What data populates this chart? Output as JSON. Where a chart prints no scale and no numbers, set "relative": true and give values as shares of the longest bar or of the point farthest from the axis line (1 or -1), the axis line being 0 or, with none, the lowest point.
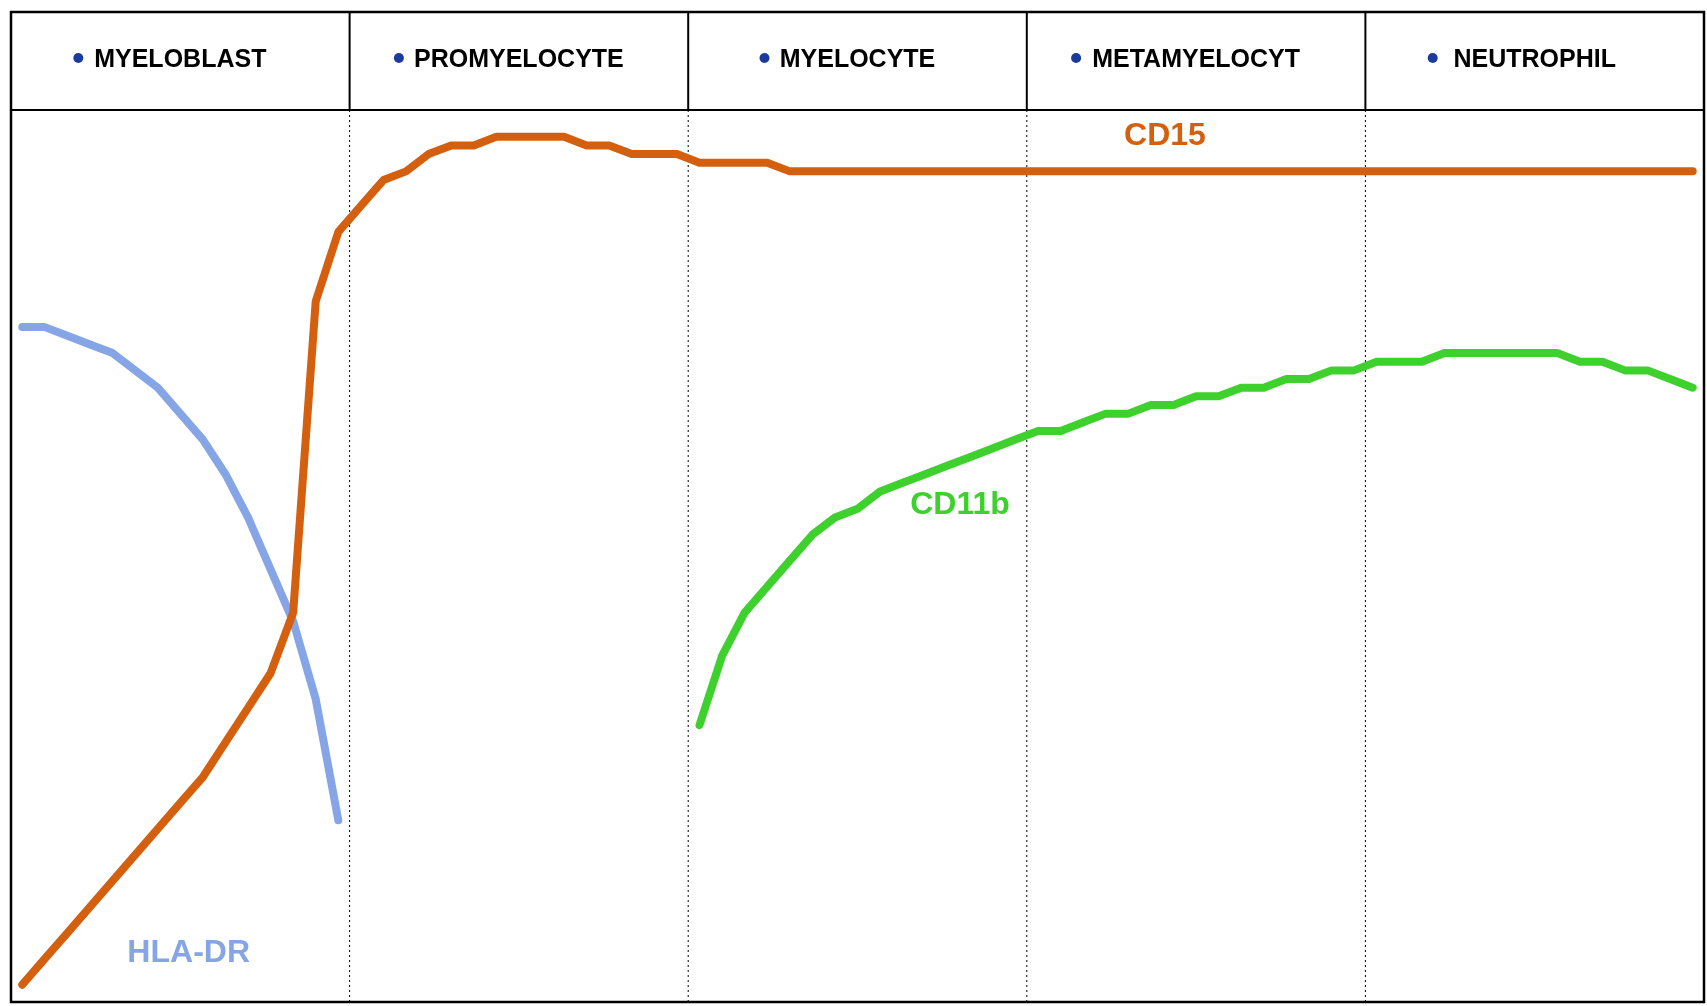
{
  "chart_data": {
    "type": "line",
    "relative": true,
    "categories": [
      null,
      null,
      null,
      null,
      null,
      null,
      null,
      "MYELOBLAST",
      null,
      null,
      null,
      null,
      null,
      null,
      null,
      null,
      null,
      null,
      null,
      null,
      null,
      null,
      "PROMYELOCYTE",
      null,
      null,
      null,
      null,
      null,
      null,
      null,
      null,
      null,
      null,
      null,
      null,
      null,
      null,
      "MYELOCYTE",
      null,
      null,
      null,
      null,
      null,
      null,
      null,
      null,
      null,
      null,
      null,
      null,
      null,
      null,
      "METAMYELOCYT",
      null,
      null,
      null,
      null,
      null,
      null,
      null,
      null,
      null,
      null,
      null,
      null,
      null,
      null,
      "NEUTROPHIL",
      null,
      null,
      null,
      null,
      null,
      null,
      null
    ],
    "series": [
      {
        "name": "HLA-DR",
        "color": "#86a5e6",
        "values": [
          0.78,
          0.78,
          0.77,
          0.76,
          0.75,
          0.73,
          0.71,
          0.68,
          0.65,
          0.61,
          0.56,
          0.5,
          0.44,
          0.35,
          0.21,
          null,
          null,
          null,
          null,
          null,
          null,
          null,
          null,
          null,
          null,
          null,
          null,
          null,
          null,
          null,
          null,
          null,
          null,
          null,
          null,
          null,
          null,
          null,
          null,
          null,
          null,
          null,
          null,
          null,
          null,
          null,
          null,
          null,
          null,
          null,
          null,
          null,
          null,
          null,
          null,
          null,
          null,
          null,
          null,
          null,
          null,
          null,
          null,
          null,
          null,
          null,
          null,
          null,
          null,
          null,
          null,
          null,
          null,
          null,
          null
        ]
      },
      {
        "name": "CD15",
        "color": "#d4600f",
        "values": [
          0.02,
          0.05,
          0.08,
          0.11,
          0.14,
          0.17,
          0.2,
          0.23,
          0.26,
          0.3,
          0.34,
          0.38,
          0.45,
          0.81,
          0.89,
          0.92,
          0.95,
          0.96,
          0.98,
          0.99,
          0.99,
          1.0,
          1.0,
          1.0,
          1.0,
          0.99,
          0.99,
          0.98,
          0.98,
          0.98,
          0.97,
          0.97,
          0.97,
          0.97,
          0.96,
          0.96,
          0.96,
          0.96,
          0.96,
          0.96,
          0.96,
          0.96,
          0.96,
          0.96,
          0.96,
          0.96,
          0.96,
          0.96,
          0.96,
          0.96,
          0.96,
          0.96,
          0.96,
          0.96,
          0.96,
          0.96,
          0.96,
          0.96,
          0.96,
          0.96,
          0.96,
          0.96,
          0.96,
          0.96,
          0.96,
          0.96,
          0.96,
          0.96,
          0.96,
          0.96,
          0.96,
          0.96,
          0.96,
          0.96,
          0.96
        ]
      },
      {
        "name": "CD11b",
        "color": "#3ed12e",
        "values": [
          null,
          null,
          null,
          null,
          null,
          null,
          null,
          null,
          null,
          null,
          null,
          null,
          null,
          null,
          null,
          null,
          null,
          null,
          null,
          null,
          null,
          null,
          null,
          null,
          null,
          null,
          null,
          null,
          null,
          null,
          0.32,
          0.4,
          0.45,
          0.48,
          0.51,
          0.54,
          0.56,
          0.57,
          0.59,
          0.6,
          0.61,
          0.62,
          0.63,
          0.64,
          0.65,
          0.66,
          0.66,
          0.67,
          0.68,
          0.68,
          0.69,
          0.69,
          0.7,
          0.7,
          0.71,
          0.71,
          0.72,
          0.72,
          0.73,
          0.73,
          0.74,
          0.74,
          0.74,
          0.75,
          0.75,
          0.75,
          0.75,
          0.75,
          0.75,
          0.74,
          0.74,
          0.73,
          0.73,
          0.72,
          0.71
        ]
      }
    ],
    "marker": "none",
    "line_style": "solid",
    "legend": false
  }
}
